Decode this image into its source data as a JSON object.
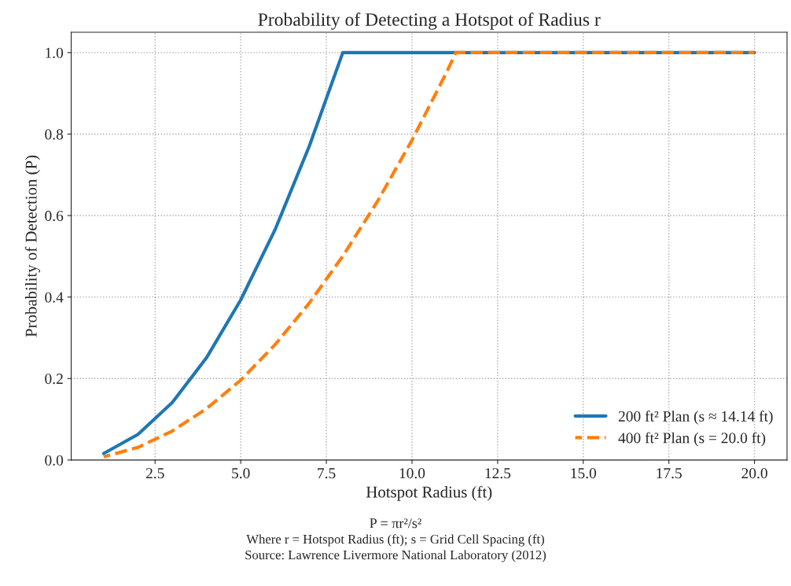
{
  "chart_data": {
    "type": "line",
    "title": "Probability of Detecting a Hotspot of Radius r",
    "xlabel": "Hotspot Radius (ft)",
    "ylabel": "Probability of Detection (P)",
    "series": [
      {
        "name": "200 ft² Plan (s ≈ 14.14 ft)",
        "color": "#1f77b4",
        "line_style": "solid",
        "x": [
          1,
          2,
          3,
          4,
          5,
          6,
          7,
          7.98,
          20
        ],
        "values": [
          0.016,
          0.063,
          0.141,
          0.251,
          0.393,
          0.565,
          0.77,
          1.0,
          1.0
        ]
      },
      {
        "name": "400 ft² Plan (s = 20.0 ft)",
        "color": "#ff7f0e",
        "line_style": "dashed",
        "x": [
          1,
          2,
          3,
          4,
          5,
          6,
          7,
          8,
          9,
          10,
          11,
          11.28,
          20
        ],
        "values": [
          0.008,
          0.031,
          0.071,
          0.126,
          0.196,
          0.283,
          0.385,
          0.503,
          0.636,
          0.785,
          0.95,
          1.0,
          1.0
        ]
      }
    ],
    "xlim": [
      0.05,
      20.95
    ],
    "xticks": [
      {
        "value": 2.5,
        "label": "2.5"
      },
      {
        "value": 5,
        "label": "5.0"
      },
      {
        "value": 7.5,
        "label": "7.5"
      },
      {
        "value": 10,
        "label": "10.0"
      },
      {
        "value": 12.5,
        "label": "12.5"
      },
      {
        "value": 15,
        "label": "15.0"
      },
      {
        "value": 17.5,
        "label": "17.5"
      },
      {
        "value": 20,
        "label": "20.0"
      }
    ],
    "ylim": [
      0,
      1.05
    ],
    "yticks": [
      {
        "value": 0,
        "label": "0.0"
      },
      {
        "value": 0.2,
        "label": "0.2"
      },
      {
        "value": 0.4,
        "label": "0.4"
      },
      {
        "value": 0.6,
        "label": "0.6"
      },
      {
        "value": 0.8,
        "label": "0.8"
      },
      {
        "value": 1,
        "label": "1.0"
      }
    ],
    "grid": true,
    "legend": "lower right",
    "annotations": [
      "P = πr²/s²",
      "Where r = Hotspot Radius (ft); s = Grid Cell Spacing (ft)",
      "Source: Lawrence Livermore National Laboratory (2012)"
    ]
  }
}
